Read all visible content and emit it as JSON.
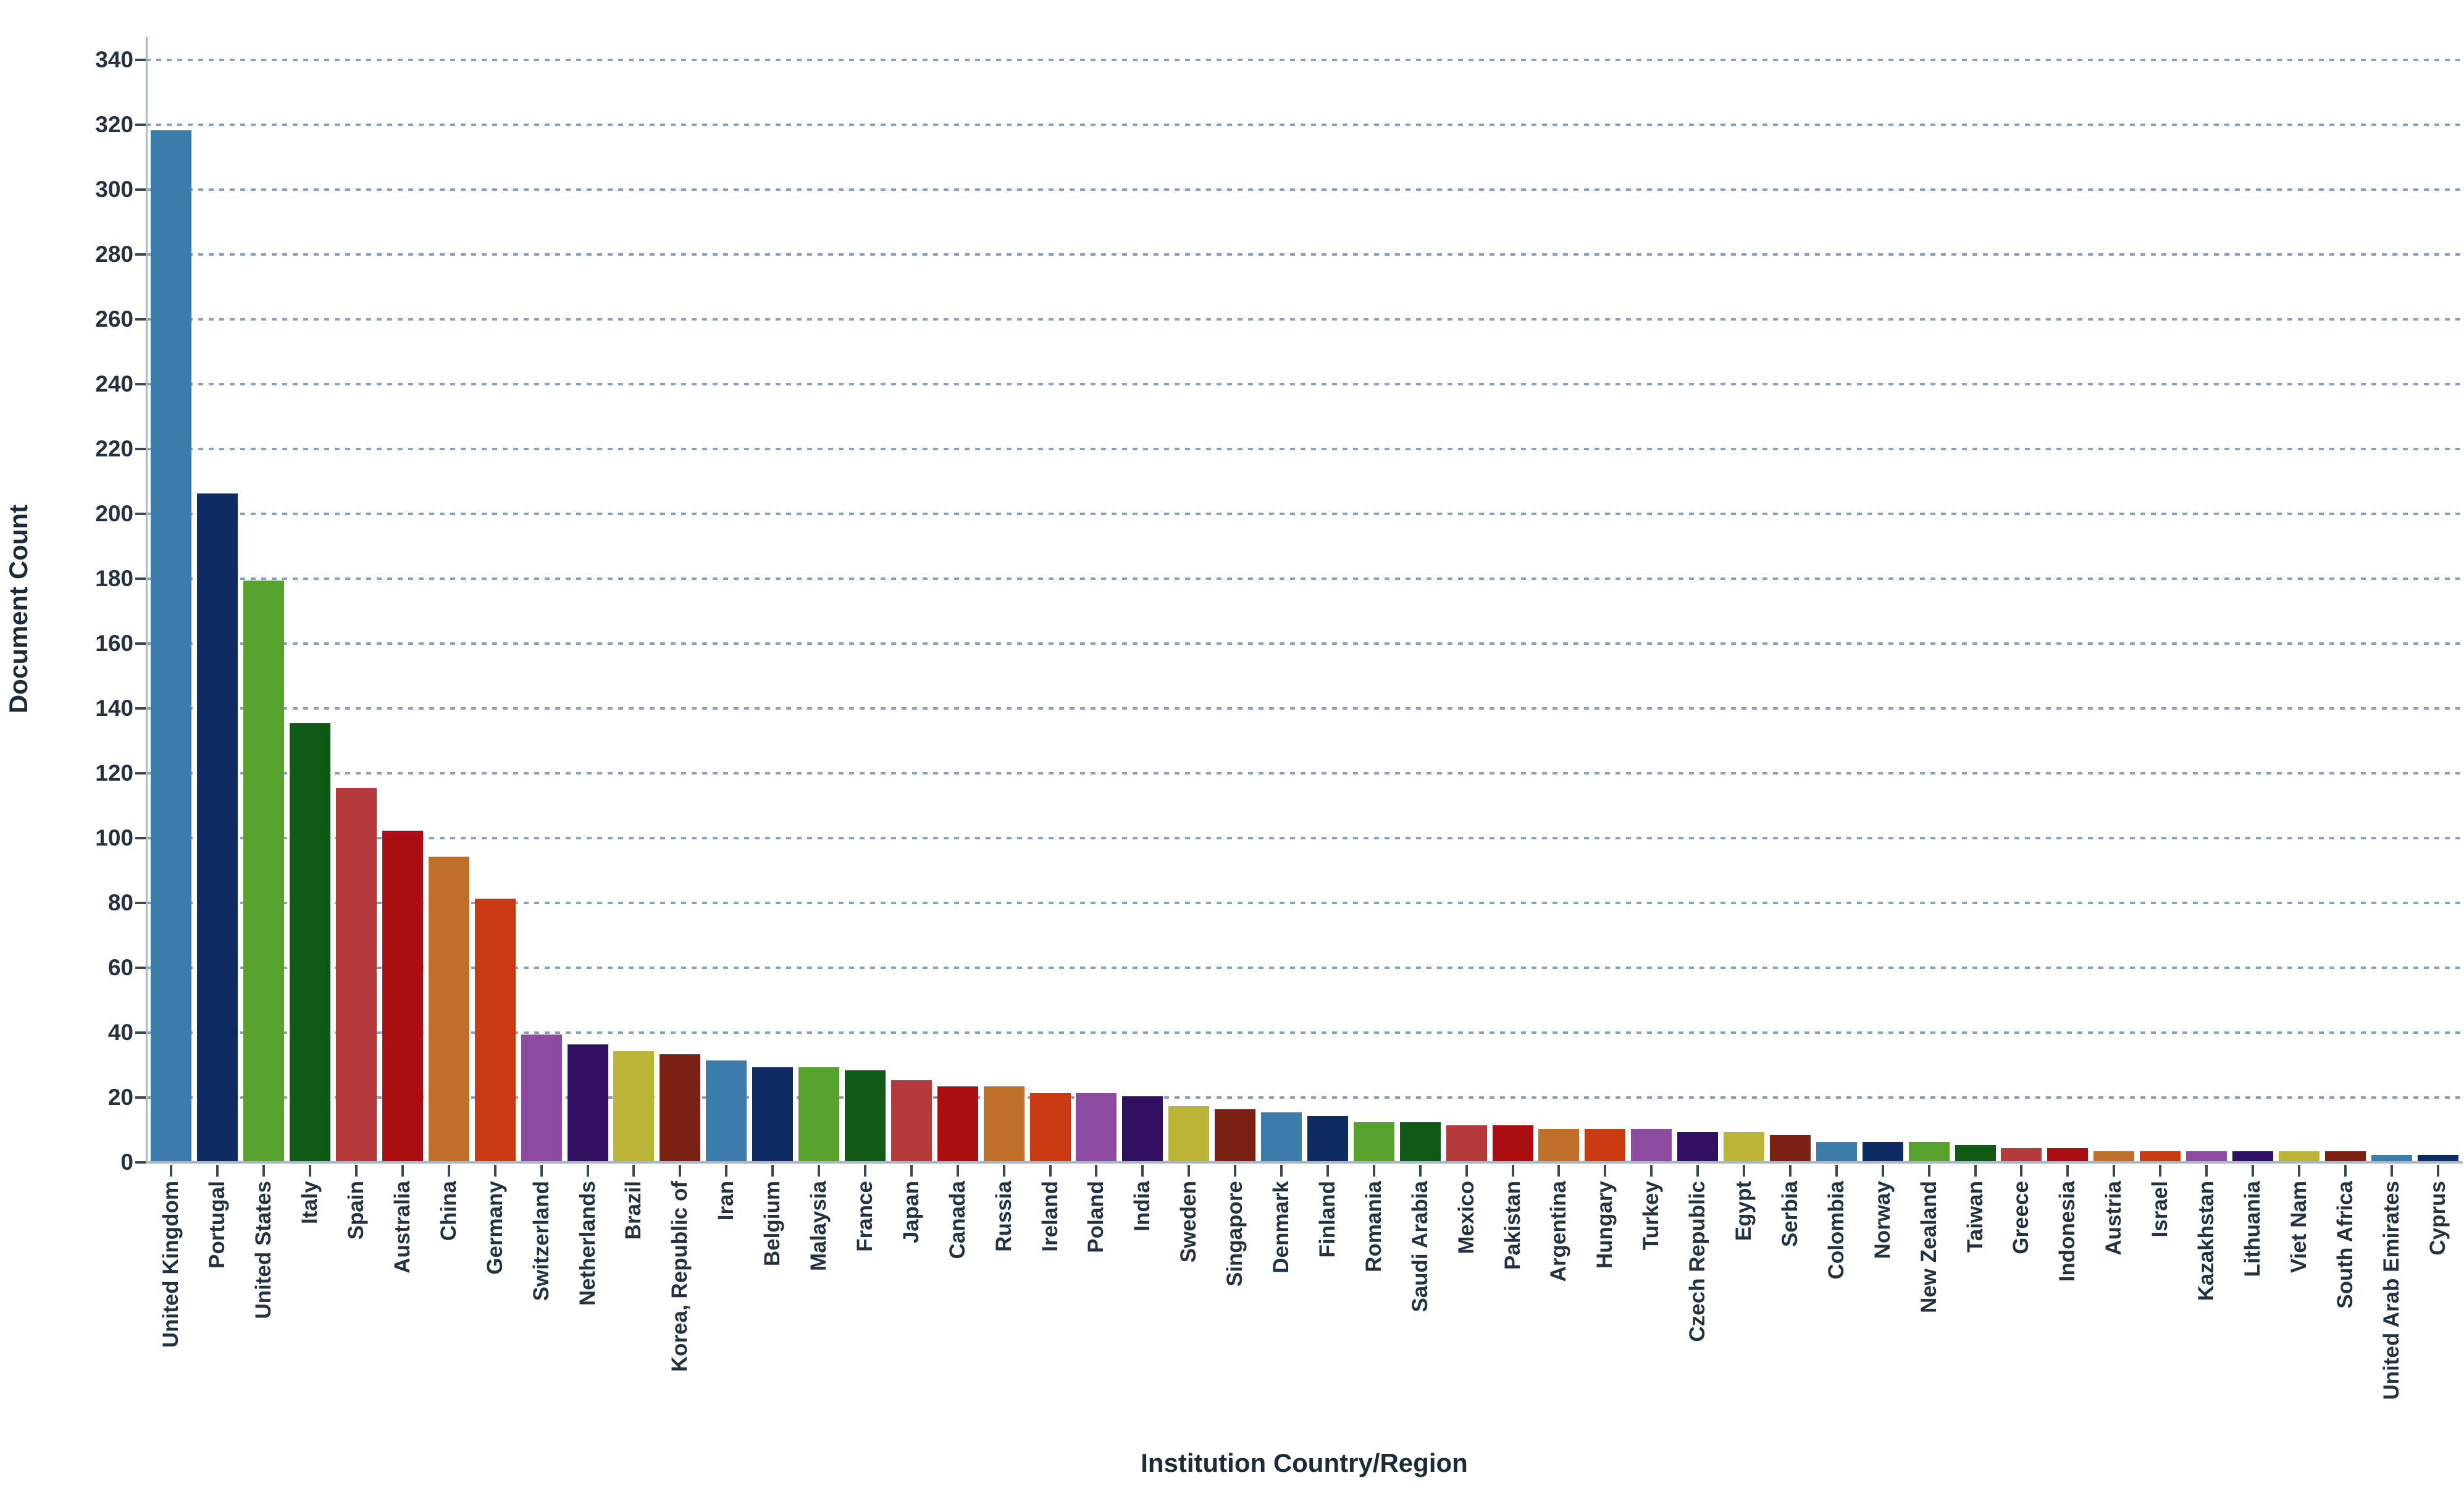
{
  "chart_data": {
    "type": "bar",
    "title": "",
    "xlabel": "Institution Country/Region",
    "ylabel": "Document Count",
    "ylim": [
      0,
      350
    ],
    "yticks": [
      0,
      20,
      40,
      60,
      80,
      100,
      120,
      140,
      160,
      180,
      200,
      220,
      240,
      260,
      280,
      300,
      320,
      340
    ],
    "grid": "dashed horizontal, on",
    "legend": "none",
    "categories": [
      "United Kingdom",
      "Portugal",
      "United States",
      "Italy",
      "Spain",
      "Australia",
      "China",
      "Germany",
      "Switzerland",
      "Netherlands",
      "Brazil",
      "Korea, Republic of",
      "Iran",
      "Belgium",
      "Malaysia",
      "France",
      "Japan",
      "Canada",
      "Russia",
      "Ireland",
      "Poland",
      "India",
      "Sweden",
      "Singapore",
      "Denmark",
      "Finland",
      "Romania",
      "Saudi Arabia",
      "Mexico",
      "Pakistan",
      "Argentina",
      "Hungary",
      "Turkey",
      "Czech Republic",
      "Egypt",
      "Serbia",
      "Colombia",
      "Norway",
      "New Zealand",
      "Taiwan",
      "Greece",
      "Indonesia",
      "Austria",
      "Israel",
      "Kazakhstan",
      "Lithuania",
      "Viet Nam",
      "South Africa",
      "United Arab Emirates",
      "Cyprus"
    ],
    "values": [
      318,
      206,
      179,
      135,
      115,
      102,
      94,
      81,
      39,
      36,
      34,
      33,
      31,
      29,
      29,
      28,
      25,
      23,
      23,
      21,
      21,
      20,
      17,
      16,
      15,
      14,
      12,
      12,
      11,
      11,
      10,
      10,
      10,
      9,
      9,
      8,
      6,
      6,
      6,
      5,
      4,
      4,
      3,
      3,
      3,
      3,
      3,
      3,
      2,
      2
    ],
    "palette": [
      "#3b7cab",
      "#0f2b64",
      "#57a12d",
      "#0f5a16",
      "#b53a3c",
      "#aa0e13",
      "#c06f2b",
      "#ca3a12",
      "#8d4aa1",
      "#311061",
      "#bcb436",
      "#7b2113"
    ],
    "color_rule": "bar i uses palette[i mod 12]"
  },
  "colors": {
    "background": "#ffffff",
    "gridline": "#8aa0bf",
    "axis_line": "#a9b7c9",
    "tick_mark": "#3a4754",
    "tick_label": "#243140",
    "axis_title": "#1c2b3a"
  }
}
